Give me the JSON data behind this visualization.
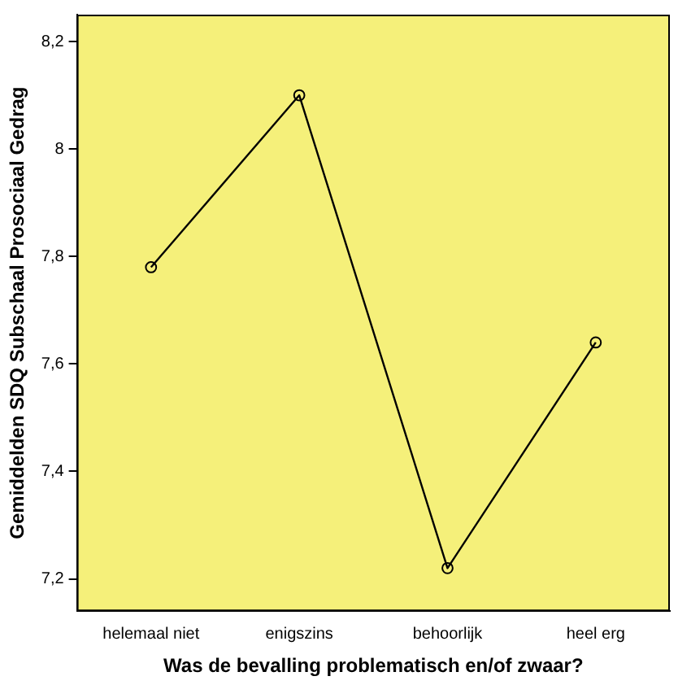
{
  "chart_data": {
    "type": "line",
    "xlabel": "Was de bevalling problematisch en/of zwaar?",
    "ylabel": "Gemiddelden SDQ Subschaal Prosociaal Gedrag",
    "categories": [
      "helemaal niet",
      "enigszins",
      "behoorlijk",
      "heel erg"
    ],
    "series": [
      {
        "color": "#000000",
        "values": [
          7.78,
          8.1,
          7.22,
          7.64
        ]
      }
    ],
    "ylim": [
      7.14,
      8.25
    ],
    "yticks": [
      {
        "value": 7.2,
        "label": "7,2"
      },
      {
        "value": 7.4,
        "label": "7,4"
      },
      {
        "value": 7.6,
        "label": "7,6"
      },
      {
        "value": 7.8,
        "label": "7,8"
      },
      {
        "value": 8,
        "label": "8"
      },
      {
        "value": 8.2,
        "label": "8,2"
      }
    ],
    "grid": false,
    "legend": false,
    "marker": "circle",
    "line_style": "solid"
  }
}
